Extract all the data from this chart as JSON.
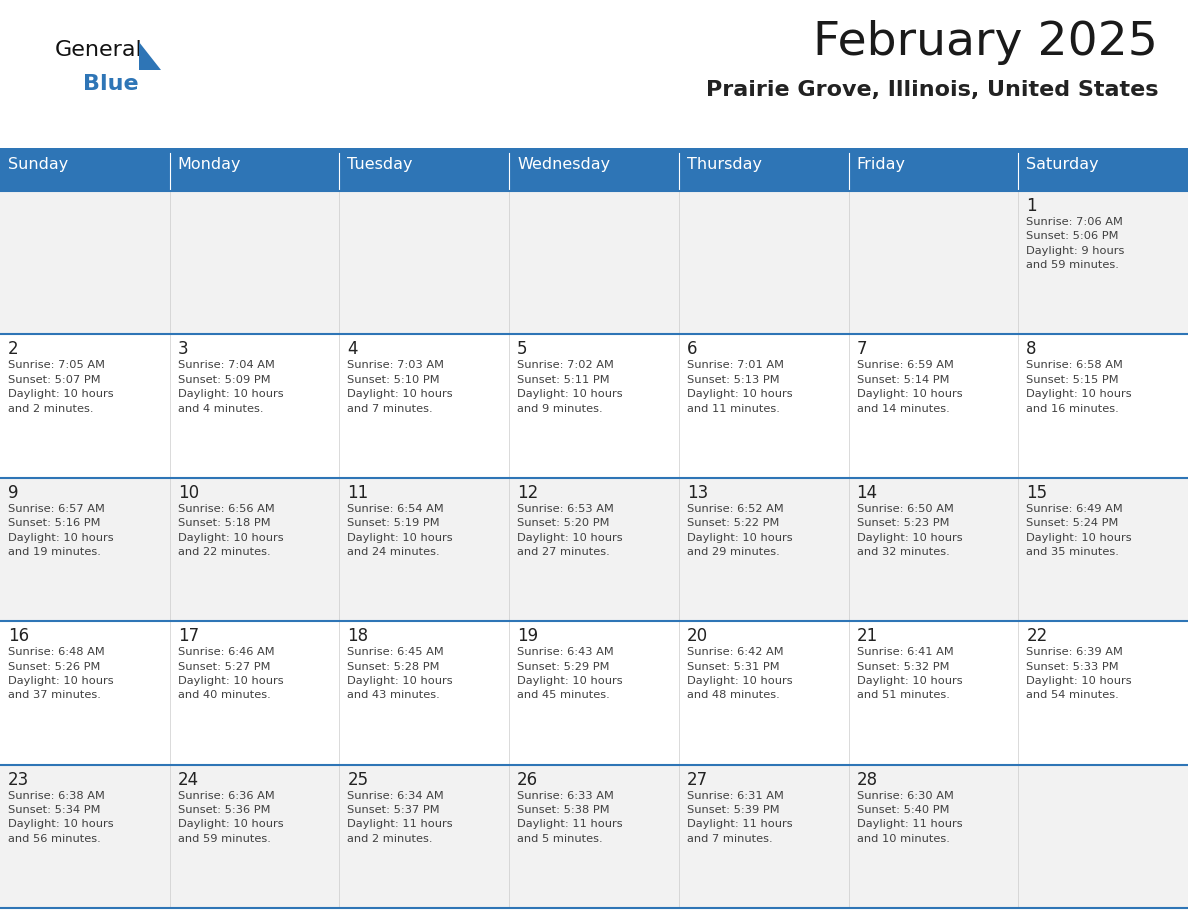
{
  "title": "February 2025",
  "subtitle": "Prairie Grove, Illinois, United States",
  "days_of_week": [
    "Sunday",
    "Monday",
    "Tuesday",
    "Wednesday",
    "Thursday",
    "Friday",
    "Saturday"
  ],
  "header_bg": "#2E75B6",
  "header_text": "#FFFFFF",
  "row_bg_odd": "#F2F2F2",
  "row_bg_even": "#FFFFFF",
  "divider_color": "#2E75B6",
  "text_color": "#404040",
  "date_color": "#222222",
  "title_color": "#1a1a1a",
  "subtitle_color": "#222222",
  "logo_general_color": "#111111",
  "logo_blue_color": "#2E75B6",
  "calendar_data": [
    [
      {
        "day": null,
        "info": null
      },
      {
        "day": null,
        "info": null
      },
      {
        "day": null,
        "info": null
      },
      {
        "day": null,
        "info": null
      },
      {
        "day": null,
        "info": null
      },
      {
        "day": null,
        "info": null
      },
      {
        "day": 1,
        "info": "Sunrise: 7:06 AM\nSunset: 5:06 PM\nDaylight: 9 hours\nand 59 minutes."
      }
    ],
    [
      {
        "day": 2,
        "info": "Sunrise: 7:05 AM\nSunset: 5:07 PM\nDaylight: 10 hours\nand 2 minutes."
      },
      {
        "day": 3,
        "info": "Sunrise: 7:04 AM\nSunset: 5:09 PM\nDaylight: 10 hours\nand 4 minutes."
      },
      {
        "day": 4,
        "info": "Sunrise: 7:03 AM\nSunset: 5:10 PM\nDaylight: 10 hours\nand 7 minutes."
      },
      {
        "day": 5,
        "info": "Sunrise: 7:02 AM\nSunset: 5:11 PM\nDaylight: 10 hours\nand 9 minutes."
      },
      {
        "day": 6,
        "info": "Sunrise: 7:01 AM\nSunset: 5:13 PM\nDaylight: 10 hours\nand 11 minutes."
      },
      {
        "day": 7,
        "info": "Sunrise: 6:59 AM\nSunset: 5:14 PM\nDaylight: 10 hours\nand 14 minutes."
      },
      {
        "day": 8,
        "info": "Sunrise: 6:58 AM\nSunset: 5:15 PM\nDaylight: 10 hours\nand 16 minutes."
      }
    ],
    [
      {
        "day": 9,
        "info": "Sunrise: 6:57 AM\nSunset: 5:16 PM\nDaylight: 10 hours\nand 19 minutes."
      },
      {
        "day": 10,
        "info": "Sunrise: 6:56 AM\nSunset: 5:18 PM\nDaylight: 10 hours\nand 22 minutes."
      },
      {
        "day": 11,
        "info": "Sunrise: 6:54 AM\nSunset: 5:19 PM\nDaylight: 10 hours\nand 24 minutes."
      },
      {
        "day": 12,
        "info": "Sunrise: 6:53 AM\nSunset: 5:20 PM\nDaylight: 10 hours\nand 27 minutes."
      },
      {
        "day": 13,
        "info": "Sunrise: 6:52 AM\nSunset: 5:22 PM\nDaylight: 10 hours\nand 29 minutes."
      },
      {
        "day": 14,
        "info": "Sunrise: 6:50 AM\nSunset: 5:23 PM\nDaylight: 10 hours\nand 32 minutes."
      },
      {
        "day": 15,
        "info": "Sunrise: 6:49 AM\nSunset: 5:24 PM\nDaylight: 10 hours\nand 35 minutes."
      }
    ],
    [
      {
        "day": 16,
        "info": "Sunrise: 6:48 AM\nSunset: 5:26 PM\nDaylight: 10 hours\nand 37 minutes."
      },
      {
        "day": 17,
        "info": "Sunrise: 6:46 AM\nSunset: 5:27 PM\nDaylight: 10 hours\nand 40 minutes."
      },
      {
        "day": 18,
        "info": "Sunrise: 6:45 AM\nSunset: 5:28 PM\nDaylight: 10 hours\nand 43 minutes."
      },
      {
        "day": 19,
        "info": "Sunrise: 6:43 AM\nSunset: 5:29 PM\nDaylight: 10 hours\nand 45 minutes."
      },
      {
        "day": 20,
        "info": "Sunrise: 6:42 AM\nSunset: 5:31 PM\nDaylight: 10 hours\nand 48 minutes."
      },
      {
        "day": 21,
        "info": "Sunrise: 6:41 AM\nSunset: 5:32 PM\nDaylight: 10 hours\nand 51 minutes."
      },
      {
        "day": 22,
        "info": "Sunrise: 6:39 AM\nSunset: 5:33 PM\nDaylight: 10 hours\nand 54 minutes."
      }
    ],
    [
      {
        "day": 23,
        "info": "Sunrise: 6:38 AM\nSunset: 5:34 PM\nDaylight: 10 hours\nand 56 minutes."
      },
      {
        "day": 24,
        "info": "Sunrise: 6:36 AM\nSunset: 5:36 PM\nDaylight: 10 hours\nand 59 minutes."
      },
      {
        "day": 25,
        "info": "Sunrise: 6:34 AM\nSunset: 5:37 PM\nDaylight: 11 hours\nand 2 minutes."
      },
      {
        "day": 26,
        "info": "Sunrise: 6:33 AM\nSunset: 5:38 PM\nDaylight: 11 hours\nand 5 minutes."
      },
      {
        "day": 27,
        "info": "Sunrise: 6:31 AM\nSunset: 5:39 PM\nDaylight: 11 hours\nand 7 minutes."
      },
      {
        "day": 28,
        "info": "Sunrise: 6:30 AM\nSunset: 5:40 PM\nDaylight: 11 hours\nand 10 minutes."
      },
      {
        "day": null,
        "info": null
      }
    ]
  ],
  "fig_width": 11.88,
  "fig_height": 9.18,
  "dpi": 100
}
